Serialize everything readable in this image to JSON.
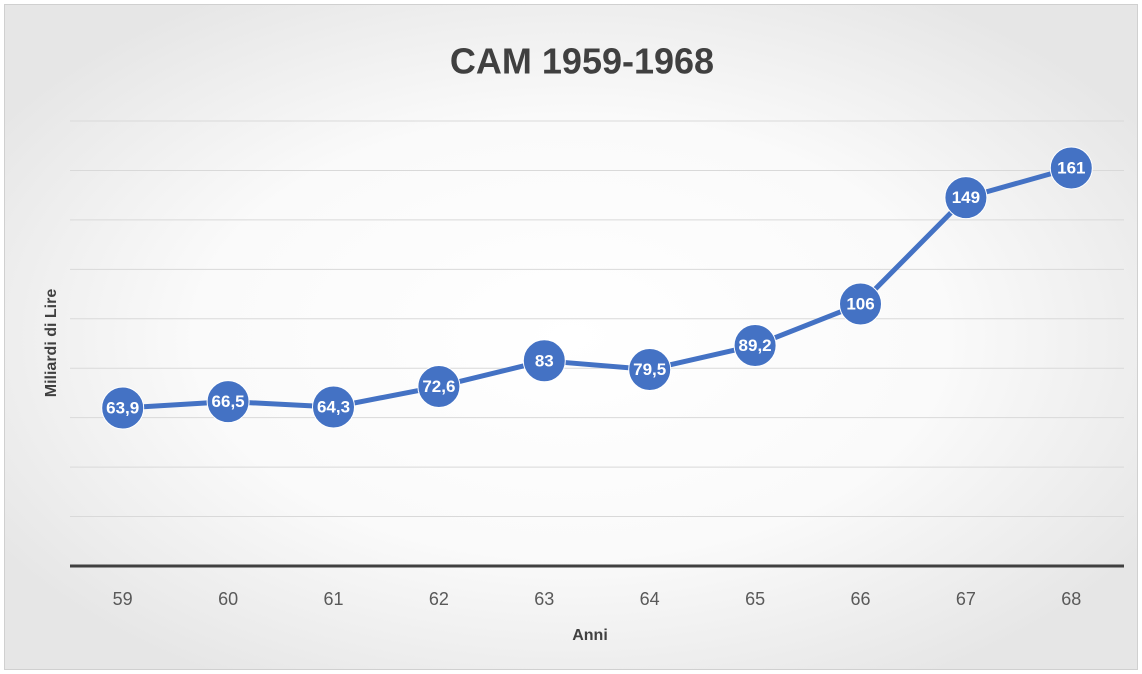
{
  "chart_data": {
    "type": "line",
    "title": "CAM 1959-1968",
    "x_label": "Anni",
    "y_label": "Miliardi di Lire",
    "categories": [
      "59",
      "60",
      "61",
      "62",
      "63",
      "64",
      "65",
      "66",
      "67",
      "68"
    ],
    "series": [
      {
        "name": "CAM",
        "color": "#4472c4",
        "values": [
          63.9,
          66.5,
          64.3,
          72.6,
          83,
          79.5,
          89.2,
          106,
          149,
          161
        ],
        "value_labels": [
          "63,9",
          "66,5",
          "64,3",
          "72,6",
          "83",
          "79,5",
          "89,2",
          "106",
          "149",
          "161"
        ]
      }
    ],
    "ylim": [
      0,
      180
    ],
    "yticks": [
      0,
      20,
      40,
      60,
      80,
      100,
      120,
      140,
      160,
      180
    ],
    "grid": true
  }
}
